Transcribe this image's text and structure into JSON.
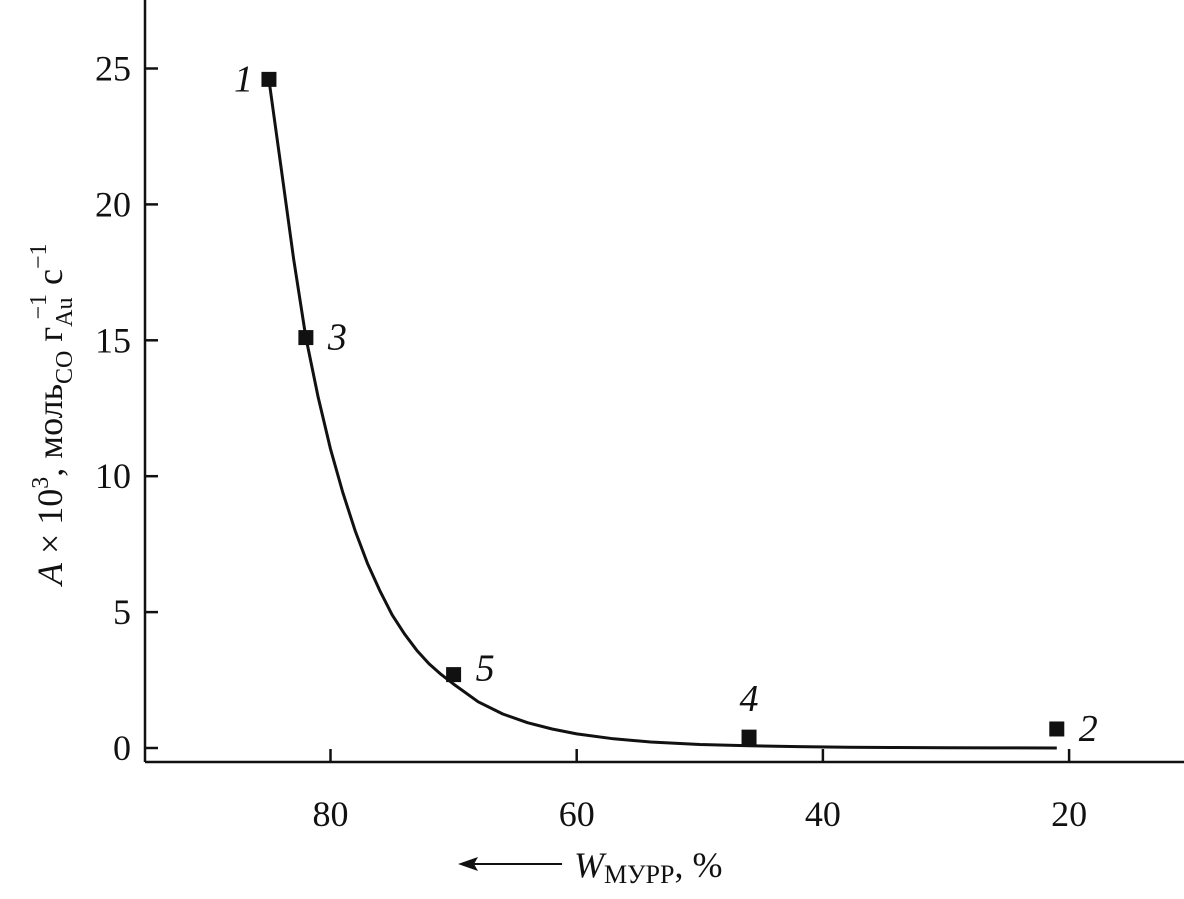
{
  "chart_data": {
    "type": "scatter",
    "x_axis": {
      "ticks": [
        80,
        60,
        40,
        20
      ],
      "tick_labels": [
        "80",
        "60",
        "40",
        "20"
      ],
      "range": [
        95,
        10
      ],
      "reversed": true,
      "label": {
        "var": "W",
        "sub": "МУРР",
        "suffix": ", %"
      },
      "direction_arrow": "left"
    },
    "y_axis": {
      "ticks": [
        0,
        5,
        10,
        15,
        20,
        25
      ],
      "tick_labels": [
        "0",
        "5",
        "10",
        "15",
        "20",
        "25"
      ],
      "range": [
        -0.5,
        27.5
      ],
      "label": {
        "var": "A",
        "times": " × 10",
        "exp": "3",
        "unit1": ", моль",
        "unit1_sub": "CO",
        "unit2": " г",
        "unit2_sub": "Au",
        "unit2_sup": "−1",
        "unit3": " с",
        "unit3_sup": "−1"
      }
    },
    "points": [
      {
        "label": "1",
        "x": 85,
        "y": 24.6
      },
      {
        "label": "3",
        "x": 82,
        "y": 15.1
      },
      {
        "label": "5",
        "x": 70,
        "y": 2.7
      },
      {
        "label": "4",
        "x": 46,
        "y": 0.4
      },
      {
        "label": "2",
        "x": 21,
        "y": 0.7
      }
    ],
    "fit_curve": {
      "x": [
        85,
        84,
        83,
        82,
        81,
        80,
        79,
        78,
        77,
        76,
        75,
        74,
        73,
        72,
        71,
        70,
        68,
        66,
        64,
        62,
        60,
        57,
        54,
        50,
        46,
        42,
        38,
        34,
        30,
        26,
        21
      ],
      "y": [
        24.6,
        21.3,
        18.0,
        15.1,
        12.9,
        11.0,
        9.4,
        8.0,
        6.8,
        5.8,
        4.9,
        4.2,
        3.6,
        3.1,
        2.7,
        2.35,
        1.7,
        1.25,
        0.93,
        0.7,
        0.52,
        0.34,
        0.22,
        0.13,
        0.08,
        0.05,
        0.03,
        0.02,
        0.01,
        0.005,
        0.0
      ]
    },
    "grid": false,
    "legend": "none"
  }
}
